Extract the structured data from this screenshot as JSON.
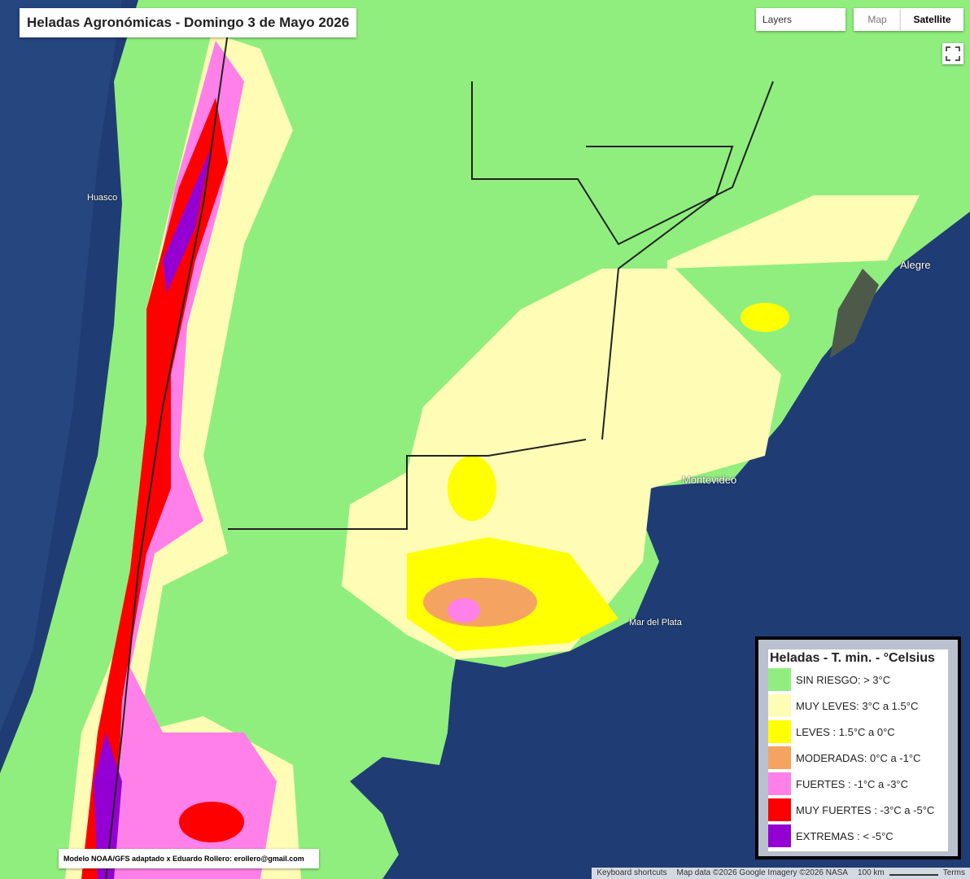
{
  "header": {
    "title": "Heladas Agronómicas - Domingo 3 de Mayo 2026"
  },
  "map_controls": {
    "layers": "Layers",
    "map": "Map",
    "satellite": "Satellite"
  },
  "place_labels": [
    "Huasco",
    "Alegre",
    "Mar del Plata",
    "Montevideo"
  ],
  "legend": {
    "title": "Heladas - T. min. - °Celsius",
    "items": [
      {
        "label": "SIN RIESGO: > 3°C",
        "color": "#90ee7e"
      },
      {
        "label": "MUY LEVES: 3°C a 1.5°C",
        "color": "#fffcb5"
      },
      {
        "label": "LEVES : 1.5°C a 0°C",
        "color": "#ffff00"
      },
      {
        "label": "MODERADAS: 0°C a -1°C",
        "color": "#f4a460"
      },
      {
        "label": "FUERTES : -1°C a -3°C",
        "color": "#ff80e8"
      },
      {
        "label": "MUY FUERTES : -3°C a -5°C",
        "color": "#ff0000"
      },
      {
        "label": "EXTREMAS : < -5°C",
        "color": "#9400d3"
      }
    ]
  },
  "credit": "Modelo NOAA/GFS adaptado x Eduardo Rollero: erollero@gmail.com",
  "footer": {
    "shortcuts": "Keyboard shortcuts",
    "map_data": "Map data ©2026 Google Imagery ©2026 NASA",
    "scale": "100 km",
    "terms": "Terms"
  }
}
